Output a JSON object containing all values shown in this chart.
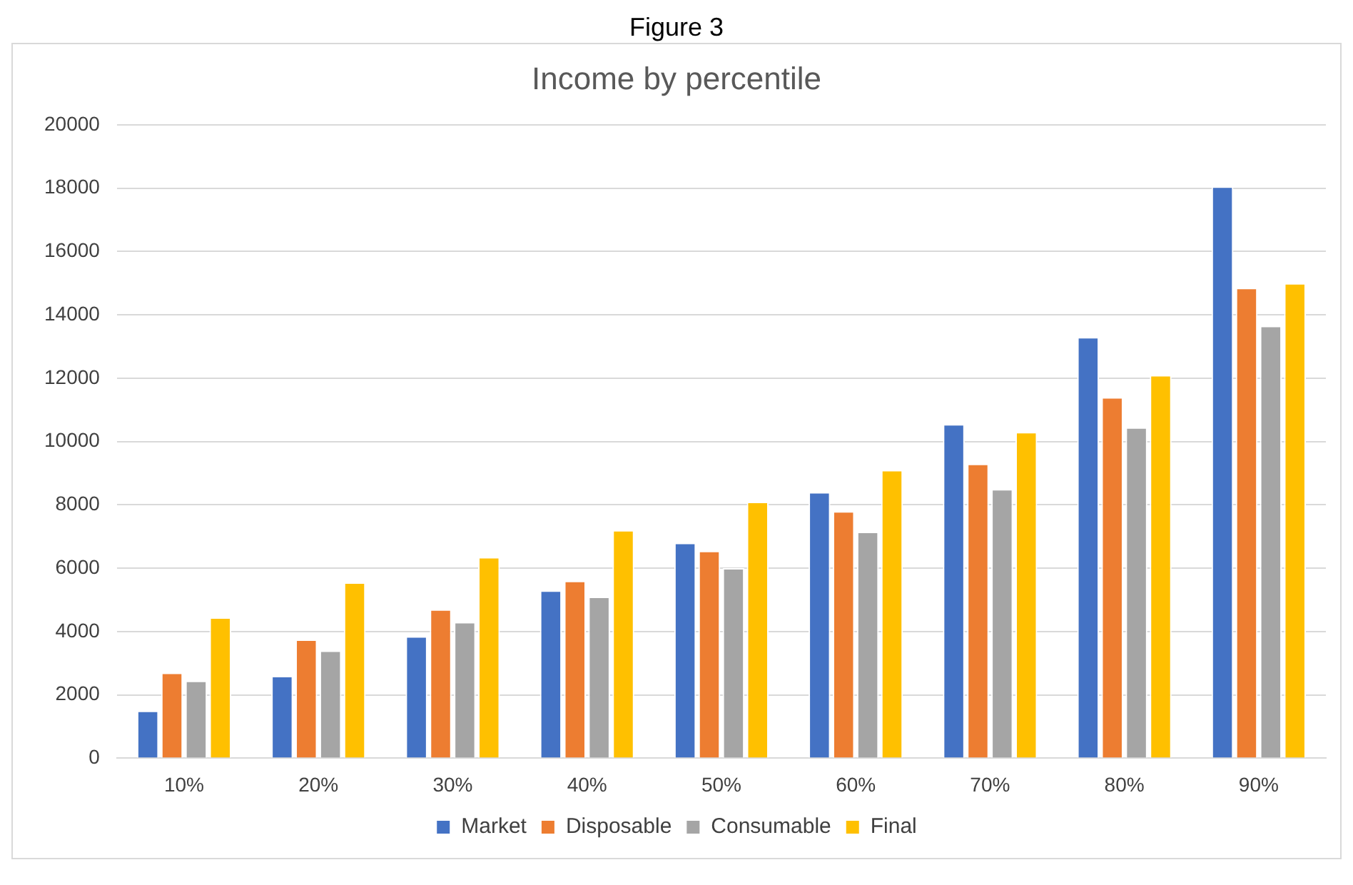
{
  "chart_data": {
    "type": "bar",
    "title": "Income by percentile",
    "annotations": [
      "Figure 3"
    ],
    "categories": [
      "10%",
      "20%",
      "30%",
      "40%",
      "50%",
      "60%",
      "70%",
      "80%",
      "90%"
    ],
    "series": [
      {
        "name": "Market",
        "color": "#4472c4",
        "values": [
          1500,
          2600,
          3850,
          5300,
          6800,
          8400,
          10550,
          13300,
          18050
        ]
      },
      {
        "name": "Disposable",
        "color": "#ed7d31",
        "values": [
          2700,
          3750,
          4700,
          5600,
          6550,
          7800,
          9300,
          11400,
          14850
        ]
      },
      {
        "name": "Consumable",
        "color": "#a5a5a5",
        "values": [
          2450,
          3400,
          4300,
          5100,
          6000,
          7150,
          8500,
          10450,
          13650
        ]
      },
      {
        "name": "Final",
        "color": "#ffc000",
        "values": [
          4450,
          5550,
          6350,
          7200,
          8100,
          9100,
          10300,
          12100,
          15000
        ]
      }
    ],
    "ylim": [
      0,
      20000
    ],
    "yticks": [
      0,
      2000,
      4000,
      6000,
      8000,
      10000,
      12000,
      14000,
      16000,
      18000,
      20000
    ],
    "grid": "y",
    "legend": "bottom"
  }
}
